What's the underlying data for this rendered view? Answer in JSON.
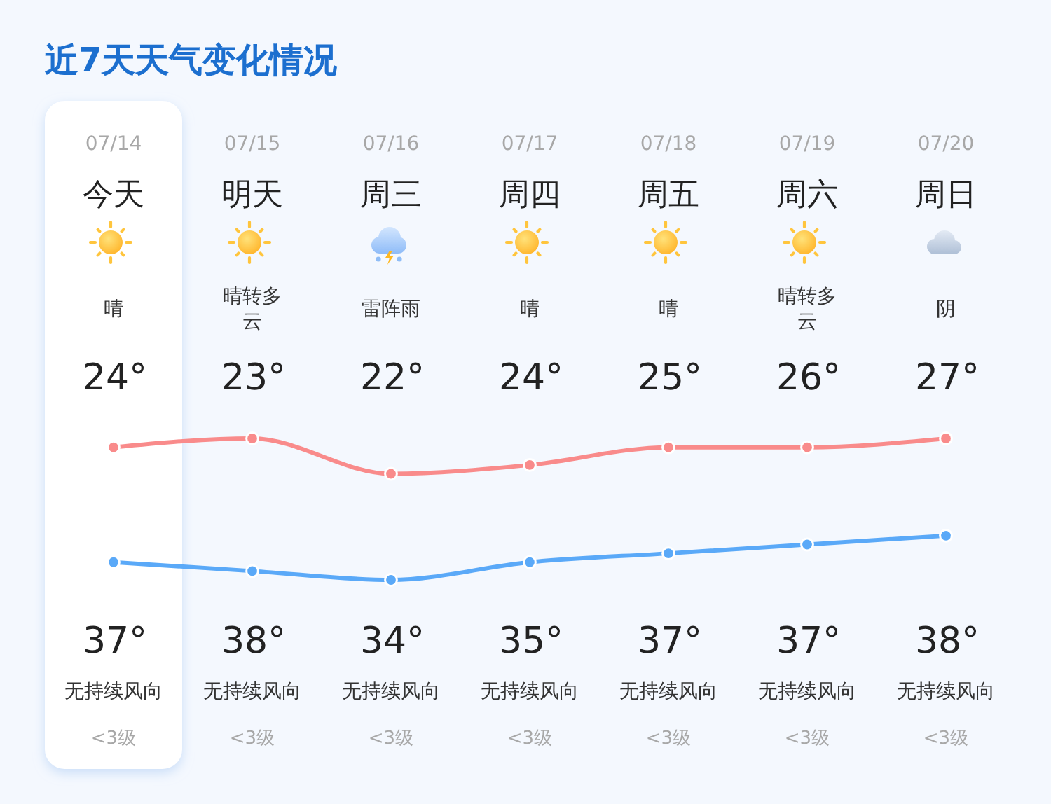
{
  "chart_data": {
    "type": "line",
    "title": "近7天天气变化情况",
    "categories": [
      "07/14",
      "07/15",
      "07/16",
      "07/17",
      "07/18",
      "07/19",
      "07/20"
    ],
    "series": [
      {
        "color": "#5aa9f8",
        "values": [
          24,
          23,
          22,
          24,
          25,
          26,
          27
        ],
        "value_labels": [
          "24°",
          "23°",
          "22°",
          "24°",
          "25°",
          "26°",
          "27°"
        ]
      },
      {
        "color": "#f98b8b",
        "values": [
          37,
          38,
          34,
          35,
          37,
          37,
          38
        ],
        "value_labels": [
          "37°",
          "38°",
          "34°",
          "35°",
          "37°",
          "37°",
          "38°"
        ]
      }
    ],
    "marker": "circle",
    "line_style": "solid",
    "annotations": [
      "今天",
      "明天",
      "周三",
      "周四",
      "周五",
      "周六",
      "周日",
      "晴",
      "晴转多云",
      "雷阵雨",
      "晴",
      "晴",
      "晴转多云",
      "阴",
      "无持续风向",
      "无持续风向",
      "无持续风向",
      "无持续风向",
      "无持续风向",
      "无持续风向",
      "无持续风向",
      "<3级",
      "<3级",
      "<3级",
      "<3级",
      "<3级",
      "<3级",
      "<3级"
    ]
  }
}
